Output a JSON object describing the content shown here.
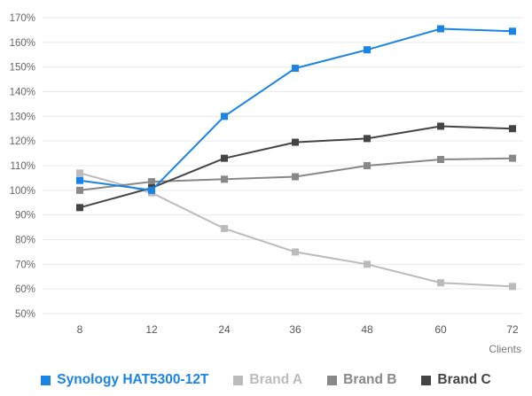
{
  "chart_data": {
    "type": "line",
    "title": "",
    "xlabel": "Clients",
    "ylabel": "",
    "categories": [
      "8",
      "12",
      "24",
      "36",
      "48",
      "60",
      "72"
    ],
    "y_ticks": [
      "50%",
      "60%",
      "70%",
      "80%",
      "90%",
      "100%",
      "110%",
      "120%",
      "130%",
      "140%",
      "150%",
      "160%",
      "170%"
    ],
    "ylim": [
      50,
      170
    ],
    "y_unit": "%",
    "grid": true,
    "legend_position": "bottom",
    "series": [
      {
        "name": "Synology HAT5300-12T",
        "color": "#1a84e6",
        "values": [
          104,
          100,
          130,
          149.5,
          157,
          165.5,
          164.5
        ]
      },
      {
        "name": "Brand A",
        "color": "#bbbbbb",
        "values": [
          107,
          99,
          84.5,
          75,
          70,
          62.5,
          61
        ]
      },
      {
        "name": "Brand B",
        "color": "#888888",
        "values": [
          100,
          103.5,
          104.5,
          105.5,
          110,
          112.5,
          113
        ]
      },
      {
        "name": "Brand C",
        "color": "#444444",
        "values": [
          93,
          101,
          113,
          119.5,
          121,
          126,
          125
        ]
      }
    ]
  }
}
